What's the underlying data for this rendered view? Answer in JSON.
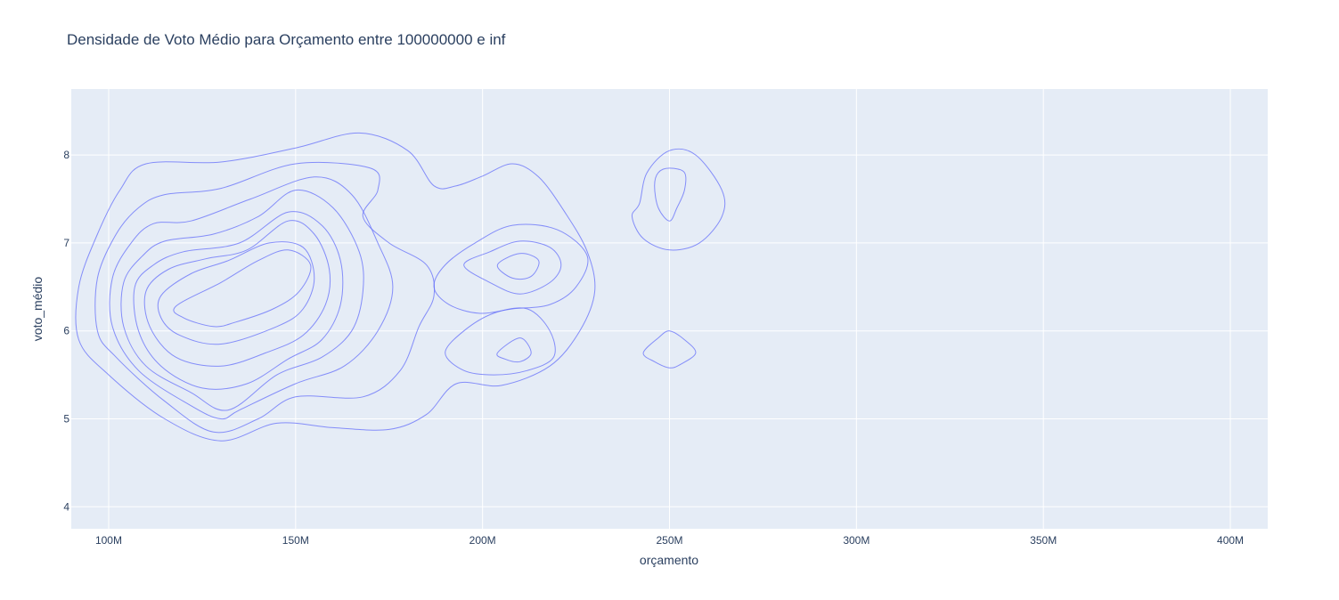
{
  "chart_data": {
    "type": "contour",
    "title": "Densidade de Voto Médio para Orçamento entre 100000000 e inf",
    "xlabel": "orçamento",
    "ylabel": "voto_médio",
    "xlim": [
      90000000,
      410000000
    ],
    "ylim": [
      3.75,
      8.75
    ],
    "x_ticks": [
      {
        "value": 100000000,
        "label": "100M"
      },
      {
        "value": 150000000,
        "label": "150M"
      },
      {
        "value": 200000000,
        "label": "200M"
      },
      {
        "value": 250000000,
        "label": "250M"
      },
      {
        "value": 300000000,
        "label": "300M"
      },
      {
        "value": 350000000,
        "label": "350M"
      },
      {
        "value": 400000000,
        "label": "400M"
      }
    ],
    "y_ticks": [
      {
        "value": 4,
        "label": "4"
      },
      {
        "value": 5,
        "label": "5"
      },
      {
        "value": 6,
        "label": "6"
      },
      {
        "value": 7,
        "label": "7"
      },
      {
        "value": 8,
        "label": "8"
      }
    ],
    "grid": true,
    "colors": {
      "plot_bg": "#e5ecf6",
      "grid": "#ffffff",
      "contour": "#636efa"
    },
    "contours": [
      {
        "level": 1,
        "points": [
          [
            92000000.0,
            6.5
          ],
          [
            97000000.0,
            7.1
          ],
          [
            103000000.0,
            7.6
          ],
          [
            110000000.0,
            7.9
          ],
          [
            130000000.0,
            7.92
          ],
          [
            150000000.0,
            8.08
          ],
          [
            167000000.0,
            8.25
          ],
          [
            180000000.0,
            8.05
          ],
          [
            187000000.0,
            7.65
          ],
          [
            193000000.0,
            7.65
          ],
          [
            200000000.0,
            7.76
          ],
          [
            208000000.0,
            7.9
          ],
          [
            215000000.0,
            7.75
          ],
          [
            222000000.0,
            7.35
          ],
          [
            228000000.0,
            6.9
          ],
          [
            230000000.0,
            6.45
          ],
          [
            226000000.0,
            6.0
          ],
          [
            218000000.0,
            5.6
          ],
          [
            205000000.0,
            5.38
          ],
          [
            193000000.0,
            5.4
          ],
          [
            185000000.0,
            5.05
          ],
          [
            175000000.0,
            4.88
          ],
          [
            160000000.0,
            4.9
          ],
          [
            145000000.0,
            4.95
          ],
          [
            130000000.0,
            4.75
          ],
          [
            115000000.0,
            5.0
          ],
          [
            100000000.0,
            5.5
          ],
          [
            92000000.0,
            5.9
          ]
        ]
      },
      {
        "level": 2,
        "points": [
          [
            97000000.0,
            6.6
          ],
          [
            102000000.0,
            7.1
          ],
          [
            108000000.0,
            7.4
          ],
          [
            115000000.0,
            7.55
          ],
          [
            130000000.0,
            7.62
          ],
          [
            150000000.0,
            7.9
          ],
          [
            170000000.0,
            7.85
          ],
          [
            172000000.0,
            7.6
          ],
          [
            168000000.0,
            7.3
          ],
          [
            175000000.0,
            7.0
          ],
          [
            185000000.0,
            6.75
          ],
          [
            187000000.0,
            6.4
          ],
          [
            183000000.0,
            6.05
          ],
          [
            178000000.0,
            5.55
          ],
          [
            168000000.0,
            5.25
          ],
          [
            150000000.0,
            5.25
          ],
          [
            140000000.0,
            5.0
          ],
          [
            128000000.0,
            4.85
          ],
          [
            115000000.0,
            5.2
          ],
          [
            102000000.0,
            5.7
          ],
          [
            97000000.0,
            6.0
          ]
        ]
      },
      {
        "level": 3,
        "points": [
          [
            101000000.0,
            6.6
          ],
          [
            106000000.0,
            7.0
          ],
          [
            112000000.0,
            7.22
          ],
          [
            122000000.0,
            7.25
          ],
          [
            138000000.0,
            7.5
          ],
          [
            155000000.0,
            7.75
          ],
          [
            165000000.0,
            7.55
          ],
          [
            172000000.0,
            7.0
          ],
          [
            176000000.0,
            6.5
          ],
          [
            172000000.0,
            6.0
          ],
          [
            163000000.0,
            5.6
          ],
          [
            150000000.0,
            5.4
          ],
          [
            135000000.0,
            5.1
          ],
          [
            130000000.0,
            5.0
          ],
          [
            122000000.0,
            5.15
          ],
          [
            108000000.0,
            5.55
          ],
          [
            101000000.0,
            6.05
          ]
        ]
      },
      {
        "level": 4,
        "points": [
          [
            104000000.0,
            6.55
          ],
          [
            109000000.0,
            6.85
          ],
          [
            115000000.0,
            7.02
          ],
          [
            128000000.0,
            7.1
          ],
          [
            140000000.0,
            7.3
          ],
          [
            150000000.0,
            7.6
          ],
          [
            160000000.0,
            7.4
          ],
          [
            167000000.0,
            6.9
          ],
          [
            168000000.0,
            6.45
          ],
          [
            165000000.0,
            6.0
          ],
          [
            157000000.0,
            5.7
          ],
          [
            145000000.0,
            5.5
          ],
          [
            132000000.0,
            5.1
          ],
          [
            122000000.0,
            5.3
          ],
          [
            110000000.0,
            5.6
          ],
          [
            104000000.0,
            6.05
          ]
        ]
      },
      {
        "level": 5,
        "points": [
          [
            107000000.0,
            6.5
          ],
          [
            112000000.0,
            6.75
          ],
          [
            120000000.0,
            6.9
          ],
          [
            135000000.0,
            7.0
          ],
          [
            148000000.0,
            7.35
          ],
          [
            157000000.0,
            7.2
          ],
          [
            162000000.0,
            6.8
          ],
          [
            162000000.0,
            6.3
          ],
          [
            157000000.0,
            5.9
          ],
          [
            148000000.0,
            5.68
          ],
          [
            137000000.0,
            5.4
          ],
          [
            125000000.0,
            5.35
          ],
          [
            114000000.0,
            5.6
          ],
          [
            108000000.0,
            6.0
          ]
        ]
      },
      {
        "level": 6,
        "points": [
          [
            110000000.0,
            6.45
          ],
          [
            116000000.0,
            6.7
          ],
          [
            126000000.0,
            6.82
          ],
          [
            137000000.0,
            6.92
          ],
          [
            148000000.0,
            7.25
          ],
          [
            155000000.0,
            7.1
          ],
          [
            159000000.0,
            6.7
          ],
          [
            158000000.0,
            6.3
          ],
          [
            152000000.0,
            5.95
          ],
          [
            142000000.0,
            5.75
          ],
          [
            130000000.0,
            5.6
          ],
          [
            118000000.0,
            5.7
          ],
          [
            111000000.0,
            6.05
          ]
        ]
      },
      {
        "level": 7,
        "points": [
          [
            114000000.0,
            6.4
          ],
          [
            122000000.0,
            6.65
          ],
          [
            132000000.0,
            6.8
          ],
          [
            143000000.0,
            7.0
          ],
          [
            152000000.0,
            6.95
          ],
          [
            155000000.0,
            6.6
          ],
          [
            152000000.0,
            6.25
          ],
          [
            145000000.0,
            6.05
          ],
          [
            130000000.0,
            5.85
          ],
          [
            119000000.0,
            5.95
          ],
          [
            114000000.0,
            6.15
          ]
        ]
      },
      {
        "level": 8,
        "points": [
          [
            118000000.0,
            6.28
          ],
          [
            130000000.0,
            6.55
          ],
          [
            140000000.0,
            6.8
          ],
          [
            148000000.0,
            6.92
          ],
          [
            154000000.0,
            6.75
          ],
          [
            151000000.0,
            6.45
          ],
          [
            144000000.0,
            6.25
          ],
          [
            134000000.0,
            6.1
          ],
          [
            128000000.0,
            6.05
          ],
          [
            120000000.0,
            6.15
          ]
        ]
      },
      {
        "level": 2,
        "points": [
          [
            190000000.0,
            6.75
          ],
          [
            198000000.0,
            7.0
          ],
          [
            208000000.0,
            7.2
          ],
          [
            220000000.0,
            7.15
          ],
          [
            228000000.0,
            6.85
          ],
          [
            225000000.0,
            6.5
          ],
          [
            218000000.0,
            6.3
          ],
          [
            208000000.0,
            6.25
          ],
          [
            199000000.0,
            6.2
          ],
          [
            191000000.0,
            6.3
          ],
          [
            187000000.0,
            6.5
          ]
        ]
      },
      {
        "level": 3,
        "points": [
          [
            195000000.0,
            6.75
          ],
          [
            202000000.0,
            6.9
          ],
          [
            210000000.0,
            7.02
          ],
          [
            218000000.0,
            6.95
          ],
          [
            221000000.0,
            6.75
          ],
          [
            218000000.0,
            6.55
          ],
          [
            210000000.0,
            6.42
          ],
          [
            202000000.0,
            6.55
          ]
        ]
      },
      {
        "level": 5,
        "points": [
          [
            204000000.0,
            6.75
          ],
          [
            210000000.0,
            6.88
          ],
          [
            215000000.0,
            6.8
          ],
          [
            213000000.0,
            6.62
          ],
          [
            208000000.0,
            6.6
          ]
        ]
      },
      {
        "level": 2,
        "points": [
          [
            190000000.0,
            5.75
          ],
          [
            195000000.0,
            6.0
          ],
          [
            203000000.0,
            6.2
          ],
          [
            212000000.0,
            6.25
          ],
          [
            218000000.0,
            6.0
          ],
          [
            219000000.0,
            5.7
          ],
          [
            212000000.0,
            5.55
          ],
          [
            203000000.0,
            5.5
          ],
          [
            195000000.0,
            5.55
          ]
        ]
      },
      {
        "level": 4,
        "points": [
          [
            204000000.0,
            5.75
          ],
          [
            210000000.0,
            5.92
          ],
          [
            213000000.0,
            5.75
          ],
          [
            210000000.0,
            5.65
          ],
          [
            206000000.0,
            5.68
          ]
        ]
      },
      {
        "level": 1,
        "points": [
          [
            242000000.0,
            7.45
          ],
          [
            244000000.0,
            7.8
          ],
          [
            250000000.0,
            8.05
          ],
          [
            257000000.0,
            8.0
          ],
          [
            264000000.0,
            7.6
          ],
          [
            264000000.0,
            7.3
          ],
          [
            258000000.0,
            7.0
          ],
          [
            250000000.0,
            6.92
          ],
          [
            243000000.0,
            7.05
          ],
          [
            240000000.0,
            7.3
          ]
        ]
      },
      {
        "level": 3,
        "points": [
          [
            246000000.0,
            7.65
          ],
          [
            247000000.0,
            7.8
          ],
          [
            250000000.0,
            7.85
          ],
          [
            254000000.0,
            7.8
          ],
          [
            254000000.0,
            7.6
          ],
          [
            252000000.0,
            7.4
          ],
          [
            250000000.0,
            7.25
          ],
          [
            247000000.0,
            7.4
          ]
        ]
      },
      {
        "level": 1,
        "points": [
          [
            243000000.0,
            5.75
          ],
          [
            247000000.0,
            5.92
          ],
          [
            250000000.0,
            6.0
          ],
          [
            254000000.0,
            5.9
          ],
          [
            257000000.0,
            5.75
          ],
          [
            253000000.0,
            5.62
          ],
          [
            250000000.0,
            5.58
          ],
          [
            246000000.0,
            5.65
          ]
        ]
      }
    ]
  }
}
